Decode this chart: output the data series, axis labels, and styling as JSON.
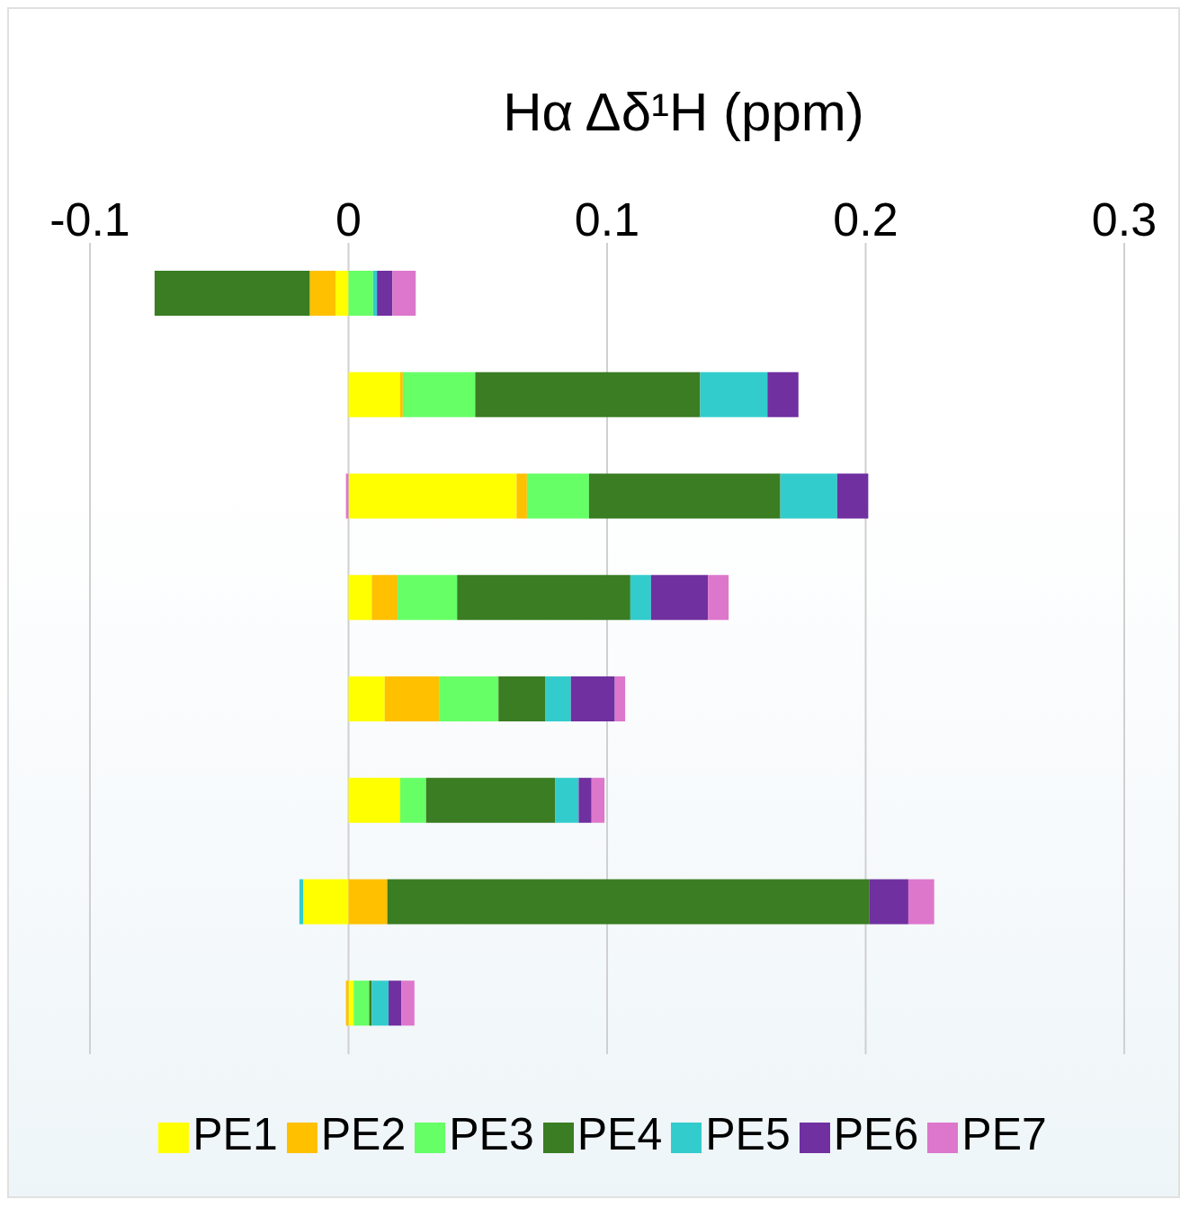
{
  "chart_data": {
    "type": "bar",
    "orientation": "horizontal",
    "stacked": true,
    "xlabel": "Hα Δδ¹H  (ppm)",
    "categories": [
      null,
      null,
      null,
      null,
      null,
      null,
      null,
      null
    ],
    "xlim": [
      -0.1,
      0.3
    ],
    "xticks": [
      -0.1,
      0,
      0.1,
      0.2,
      0.3
    ],
    "grid": "x",
    "legend": "bottom",
    "series": [
      {
        "name": "PE1",
        "color": "#ffff00",
        "values": [
          -0.005,
          0.02,
          0.065,
          0.009,
          0.014,
          0.02,
          -0.0175,
          0.002
        ]
      },
      {
        "name": "PE2",
        "color": "#ffc000",
        "values": [
          -0.01,
          0.001,
          0.004,
          0.01,
          0.021,
          null,
          0.015,
          -0.001
        ]
      },
      {
        "name": "PE3",
        "color": "#66ff66",
        "values": [
          0.0095,
          0.028,
          0.024,
          0.023,
          0.023,
          0.01,
          null,
          0.006
        ]
      },
      {
        "name": "PE4",
        "color": "#3a7d22",
        "values": [
          -0.06,
          0.087,
          0.074,
          0.067,
          0.018,
          0.05,
          0.1865,
          0.001
        ]
      },
      {
        "name": "PE5",
        "color": "#33cccc",
        "values": [
          0.0015,
          0.026,
          0.022,
          0.008,
          0.01,
          0.009,
          -0.0015,
          0.0065
        ]
      },
      {
        "name": "PE6",
        "color": "#7030a0",
        "values": [
          0.006,
          0.012,
          0.012,
          0.022,
          0.017,
          0.005,
          0.015,
          0.005
        ]
      },
      {
        "name": "PE7",
        "color": "#dd77cc",
        "values": [
          0.009,
          null,
          -0.001,
          0.008,
          0.004,
          0.005,
          0.01,
          0.005
        ]
      }
    ]
  }
}
